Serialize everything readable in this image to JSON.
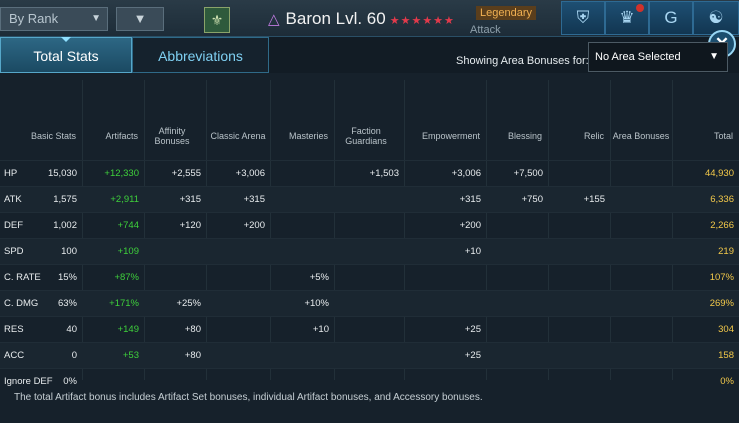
{
  "topbar": {
    "sort_label": "By Rank",
    "sort_icon": "chevron-down-icon",
    "filter_icon": "filter-icon",
    "faction_icon": "faction-banner-icon",
    "champion_name": "Baron Lvl. 60",
    "affinity_icon": "triangle-icon",
    "stars": "★★★★★★",
    "rarity": "Legendary",
    "role": "Attack",
    "nav_icons": [
      "armor-icon",
      "crown-icon",
      "guild-icon",
      "mask-icon"
    ]
  },
  "tabs": [
    {
      "label": "Total Stats",
      "active": true
    },
    {
      "label": "Abbreviations",
      "active": false
    }
  ],
  "close_icon": "close-icon",
  "area": {
    "label": "Showing Area Bonuses for:",
    "selected": "No Area Selected"
  },
  "columns": [
    "Basic Stats",
    "Artifacts",
    "Affinity Bonuses",
    "Classic Arena",
    "Masteries",
    "Faction Guardians",
    "Empowerment",
    "Blessing",
    "Relic",
    "Area Bonuses",
    "Total"
  ],
  "rows": [
    {
      "stat": "HP",
      "basic": "15,030",
      "artifacts": "+12,330",
      "affinity": "+2,555",
      "arena": "+3,006",
      "masteries": "",
      "guardians": "+1,503",
      "empower": "+3,006",
      "blessing": "+7,500",
      "relic": "",
      "area": "",
      "total": "44,930"
    },
    {
      "stat": "ATK",
      "basic": "1,575",
      "artifacts": "+2,911",
      "affinity": "+315",
      "arena": "+315",
      "masteries": "",
      "guardians": "",
      "empower": "+315",
      "blessing": "+750",
      "relic": "+155",
      "area": "",
      "total": "6,336"
    },
    {
      "stat": "DEF",
      "basic": "1,002",
      "artifacts": "+744",
      "affinity": "+120",
      "arena": "+200",
      "masteries": "",
      "guardians": "",
      "empower": "+200",
      "blessing": "",
      "relic": "",
      "area": "",
      "total": "2,266"
    },
    {
      "stat": "SPD",
      "basic": "100",
      "artifacts": "+109",
      "affinity": "",
      "arena": "",
      "masteries": "",
      "guardians": "",
      "empower": "+10",
      "blessing": "",
      "relic": "",
      "area": "",
      "total": "219"
    },
    {
      "stat": "C. RATE",
      "basic": "15%",
      "artifacts": "+87%",
      "affinity": "",
      "arena": "",
      "masteries": "+5%",
      "guardians": "",
      "empower": "",
      "blessing": "",
      "relic": "",
      "area": "",
      "total": "107%"
    },
    {
      "stat": "C. DMG",
      "basic": "63%",
      "artifacts": "+171%",
      "affinity": "+25%",
      "arena": "",
      "masteries": "+10%",
      "guardians": "",
      "empower": "",
      "blessing": "",
      "relic": "",
      "area": "",
      "total": "269%"
    },
    {
      "stat": "RES",
      "basic": "40",
      "artifacts": "+149",
      "affinity": "+80",
      "arena": "",
      "masteries": "+10",
      "guardians": "",
      "empower": "+25",
      "blessing": "",
      "relic": "",
      "area": "",
      "total": "304"
    },
    {
      "stat": "ACC",
      "basic": "0",
      "artifacts": "+53",
      "affinity": "+80",
      "arena": "",
      "masteries": "",
      "guardians": "",
      "empower": "+25",
      "blessing": "",
      "relic": "",
      "area": "",
      "total": "158"
    },
    {
      "stat": "Ignore DEF",
      "basic": "0%",
      "artifacts": "",
      "affinity": "",
      "arena": "",
      "masteries": "",
      "guardians": "",
      "empower": "",
      "blessing": "",
      "relic": "",
      "area": "",
      "total": "0%"
    }
  ],
  "footnote": "The total Artifact bonus includes Artifact Set bonuses, individual Artifact bonuses, and Accessory bonuses."
}
